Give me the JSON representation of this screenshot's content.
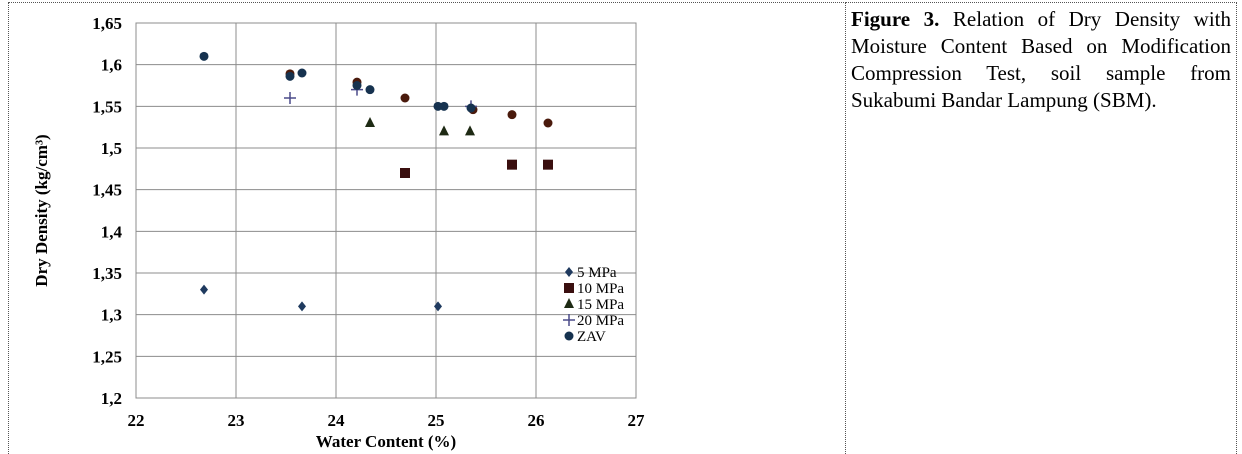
{
  "caption": {
    "label": "Figure 3.",
    "text": "Relation of Dry Density with Moisture Content Based on Modification Compression Test, soil sample from Sukabumi Bandar Lampung (SBM)."
  },
  "chart_data": {
    "type": "scatter",
    "xlabel": "Water Content (%)",
    "ylabel": "Dry Density (kg/cm³)",
    "xlim": [
      22,
      27
    ],
    "ylim": [
      1.2,
      1.65
    ],
    "x_ticks": [
      "22",
      "23",
      "24",
      "25",
      "26",
      "27"
    ],
    "y_ticks": [
      "1,2",
      "1,25",
      "1,3",
      "1,35",
      "1,4",
      "1,45",
      "1,5",
      "1,55",
      "1,6",
      "1,65"
    ],
    "grid": true,
    "legend_position": "right",
    "series": [
      {
        "name": "5 MPa",
        "marker": "diamond",
        "color": "#1f3a5f",
        "points": [
          [
            22.68,
            1.33
          ],
          [
            23.66,
            1.31
          ],
          [
            25.02,
            1.31
          ]
        ]
      },
      {
        "name": "10 MPa",
        "marker": "square",
        "color": "#3a0f0f",
        "points": [
          [
            24.69,
            1.47
          ],
          [
            25.76,
            1.48
          ],
          [
            26.12,
            1.48
          ]
        ]
      },
      {
        "name": "15 MPa",
        "marker": "triangle",
        "color": "#1e2a14",
        "points": [
          [
            24.34,
            1.53
          ],
          [
            25.08,
            1.52
          ],
          [
            25.34,
            1.52
          ]
        ]
      },
      {
        "name": "20 MPa",
        "marker": "plus",
        "color": "#4b4b8a",
        "points": [
          [
            23.54,
            1.56
          ],
          [
            24.21,
            1.57
          ],
          [
            25.35,
            1.55
          ]
        ]
      },
      {
        "name": "ZAV",
        "marker": "circle",
        "color": "#16324f",
        "points": [
          [
            22.68,
            1.61
          ],
          [
            23.54,
            1.586
          ],
          [
            23.66,
            1.59
          ],
          [
            24.21,
            1.575
          ],
          [
            24.34,
            1.57
          ],
          [
            25.02,
            1.55
          ],
          [
            25.08,
            1.55
          ],
          [
            25.35,
            1.548
          ]
        ]
      }
    ],
    "extra_points": {
      "name": "",
      "marker": "circle",
      "color": "#4a1a0c",
      "points": [
        [
          23.54,
          1.589
        ],
        [
          24.21,
          1.579
        ],
        [
          24.69,
          1.56
        ],
        [
          25.37,
          1.546
        ],
        [
          25.76,
          1.54
        ],
        [
          26.12,
          1.53
        ]
      ]
    }
  }
}
